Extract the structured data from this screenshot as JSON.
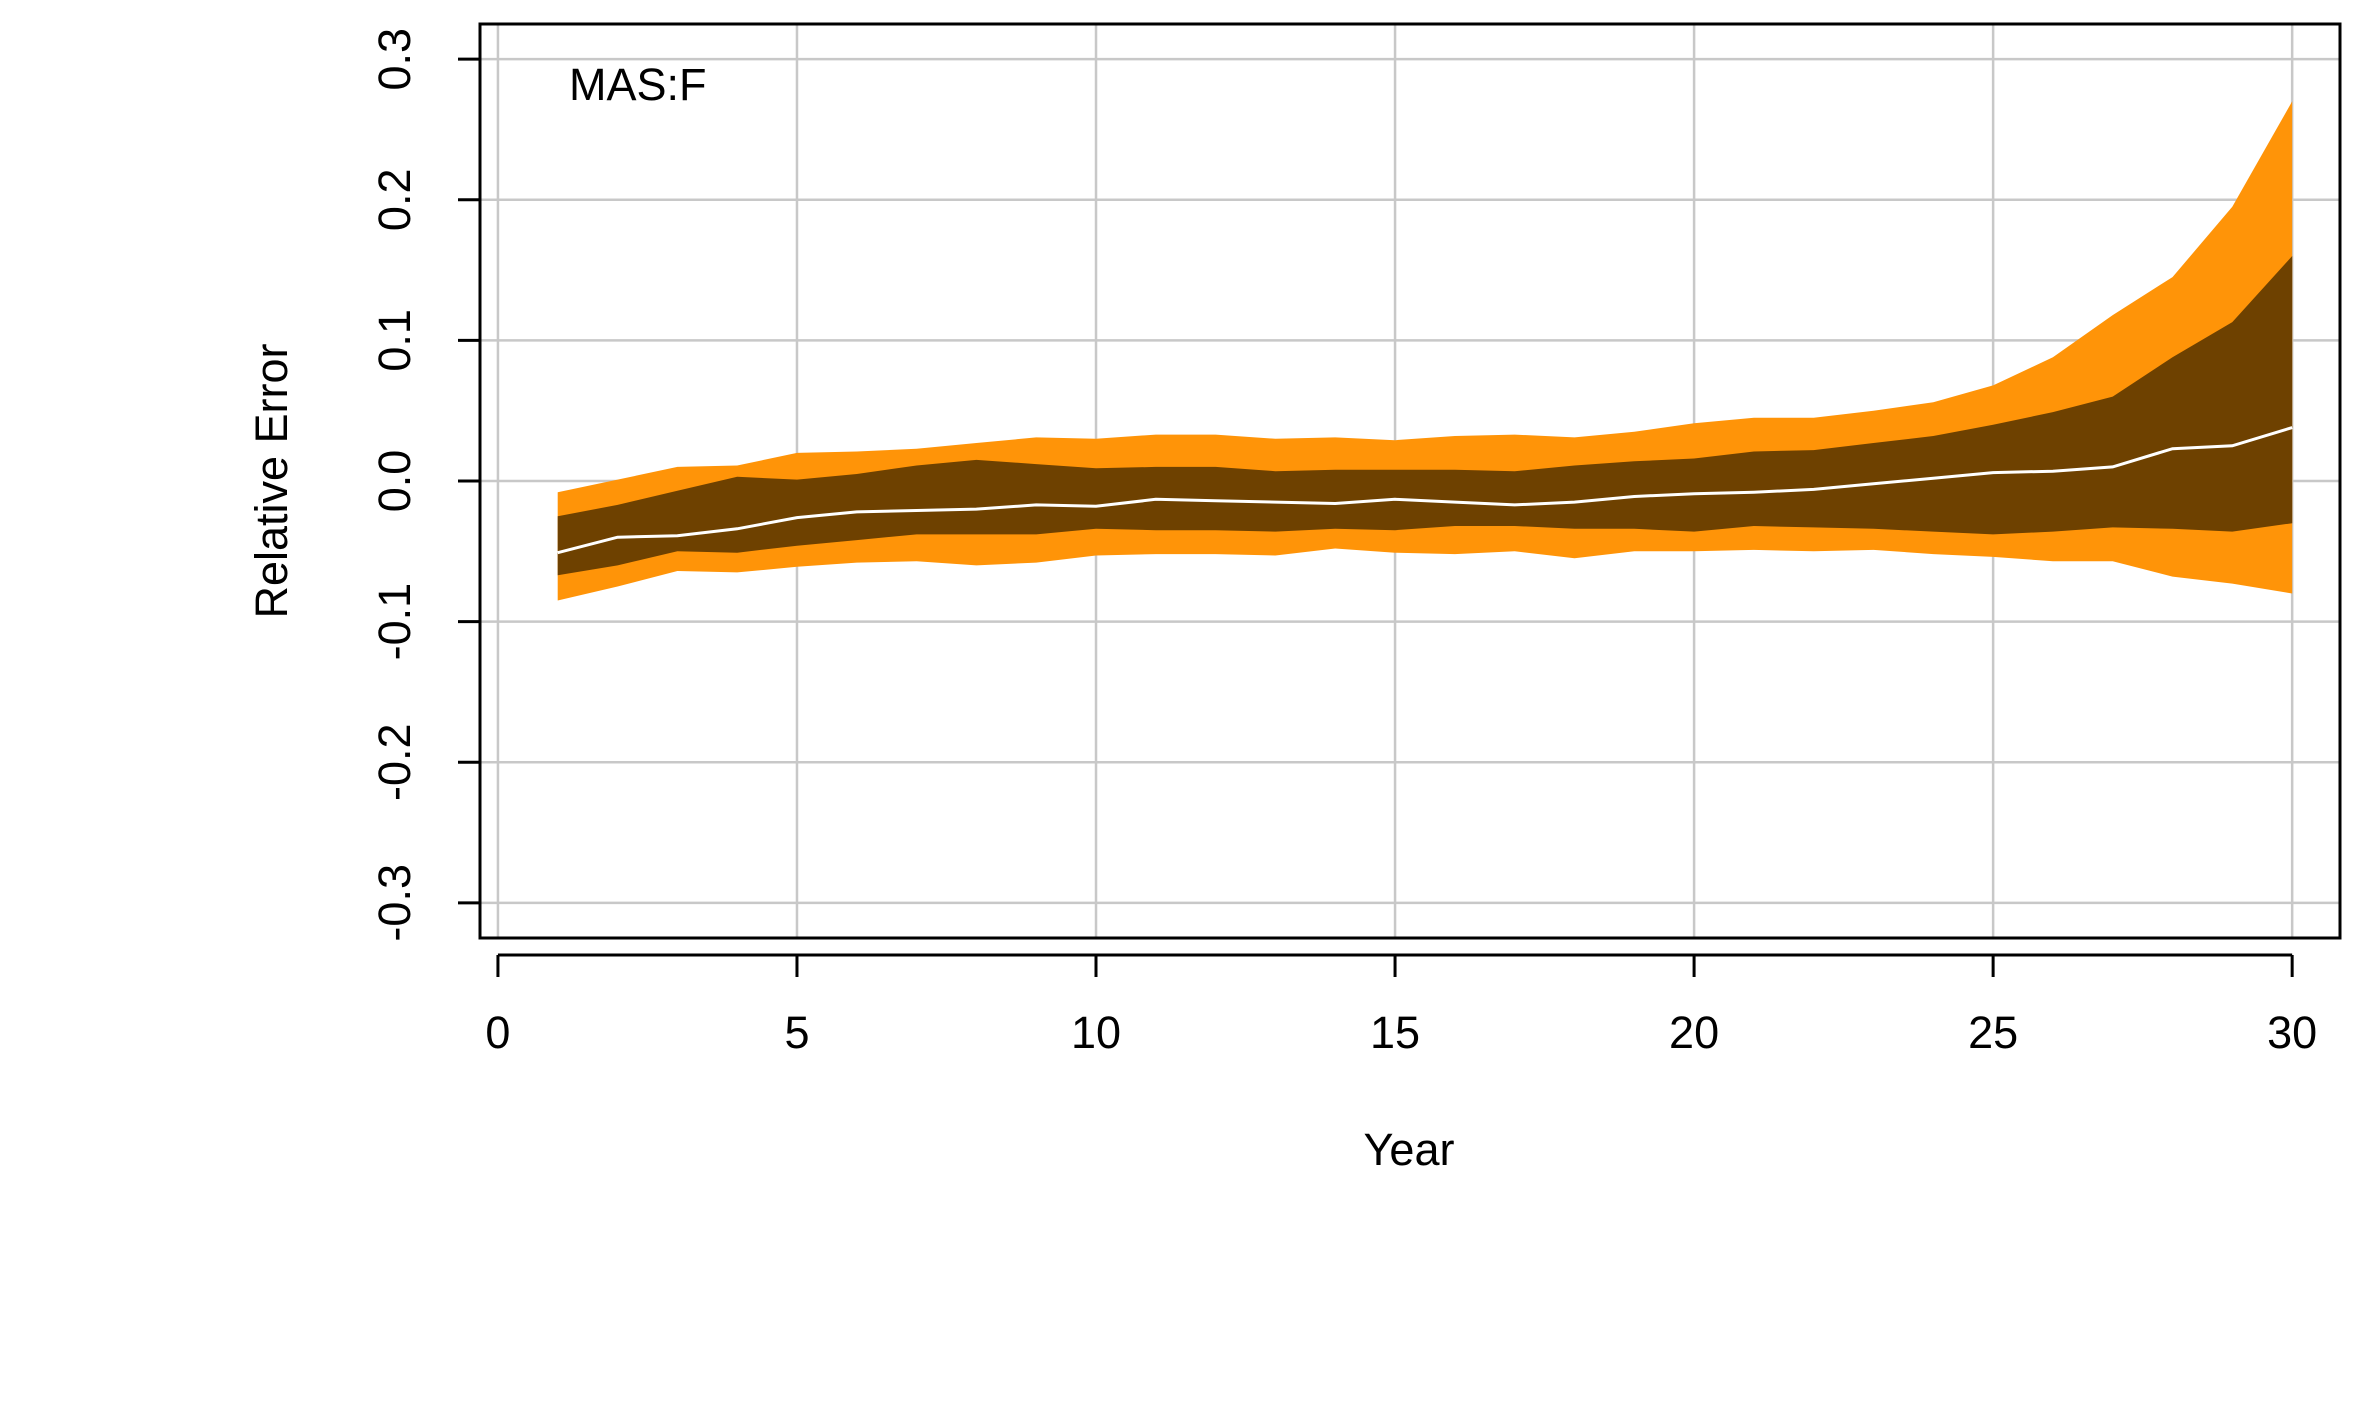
{
  "chart_data": {
    "type": "area",
    "panel_label": "MAS:F",
    "xlabel": "Year",
    "ylabel": "Relative Error",
    "xlim": [
      -0.3,
      30.8
    ],
    "ylim": [
      -0.325,
      0.325
    ],
    "xticks": [
      0,
      5,
      10,
      15,
      20,
      25,
      30
    ],
    "xtick_labels": [
      "0",
      "5",
      "10",
      "15",
      "20",
      "25",
      "30"
    ],
    "yticks": [
      -0.3,
      -0.2,
      -0.1,
      0.0,
      0.1,
      0.2,
      0.3
    ],
    "ytick_labels": [
      "-0.3",
      "-0.2",
      "-0.1",
      "0.0",
      "0.1",
      "0.2",
      "0.3"
    ],
    "grid": true,
    "colors": {
      "outer_band": "#FF9408",
      "inner_band": "#6E4100",
      "median_line": "#FFFFFF",
      "grid": "#C8C8C8"
    },
    "x": [
      1,
      2,
      3,
      4,
      5,
      6,
      7,
      8,
      9,
      10,
      11,
      12,
      13,
      14,
      15,
      16,
      17,
      18,
      19,
      20,
      21,
      22,
      23,
      24,
      25,
      26,
      27,
      28,
      29,
      30
    ],
    "series": [
      {
        "role": "outer_upper",
        "values": [
          -0.008,
          0.001,
          0.01,
          0.011,
          0.02,
          0.021,
          0.023,
          0.027,
          0.031,
          0.03,
          0.033,
          0.033,
          0.03,
          0.031,
          0.029,
          0.032,
          0.033,
          0.031,
          0.035,
          0.041,
          0.045,
          0.045,
          0.05,
          0.056,
          0.068,
          0.088,
          0.118,
          0.145,
          0.195,
          0.27
        ]
      },
      {
        "role": "inner_upper",
        "values": [
          -0.025,
          -0.017,
          -0.007,
          0.003,
          0.001,
          0.005,
          0.011,
          0.015,
          0.012,
          0.009,
          0.01,
          0.01,
          0.007,
          0.008,
          0.008,
          0.008,
          0.007,
          0.011,
          0.014,
          0.016,
          0.021,
          0.022,
          0.027,
          0.032,
          0.04,
          0.049,
          0.06,
          0.088,
          0.113,
          0.16
        ]
      },
      {
        "role": "median",
        "values": [
          -0.051,
          -0.04,
          -0.039,
          -0.034,
          -0.026,
          -0.022,
          -0.021,
          -0.02,
          -0.017,
          -0.018,
          -0.013,
          -0.014,
          -0.015,
          -0.016,
          -0.013,
          -0.015,
          -0.017,
          -0.015,
          -0.011,
          -0.009,
          -0.008,
          -0.006,
          -0.002,
          0.002,
          0.006,
          0.007,
          0.01,
          0.023,
          0.025,
          0.038
        ]
      },
      {
        "role": "inner_lower",
        "values": [
          -0.067,
          -0.06,
          -0.05,
          -0.051,
          -0.046,
          -0.042,
          -0.038,
          -0.038,
          -0.038,
          -0.034,
          -0.035,
          -0.035,
          -0.036,
          -0.034,
          -0.035,
          -0.032,
          -0.032,
          -0.034,
          -0.034,
          -0.036,
          -0.032,
          -0.033,
          -0.034,
          -0.036,
          -0.038,
          -0.036,
          -0.033,
          -0.034,
          -0.036,
          -0.03
        ]
      },
      {
        "role": "outer_lower",
        "values": [
          -0.085,
          -0.075,
          -0.064,
          -0.065,
          -0.061,
          -0.058,
          -0.057,
          -0.06,
          -0.058,
          -0.053,
          -0.052,
          -0.052,
          -0.053,
          -0.048,
          -0.051,
          -0.052,
          -0.05,
          -0.055,
          -0.05,
          -0.05,
          -0.049,
          -0.05,
          -0.049,
          -0.052,
          -0.054,
          -0.057,
          -0.057,
          -0.068,
          -0.073,
          -0.08
        ]
      }
    ]
  }
}
